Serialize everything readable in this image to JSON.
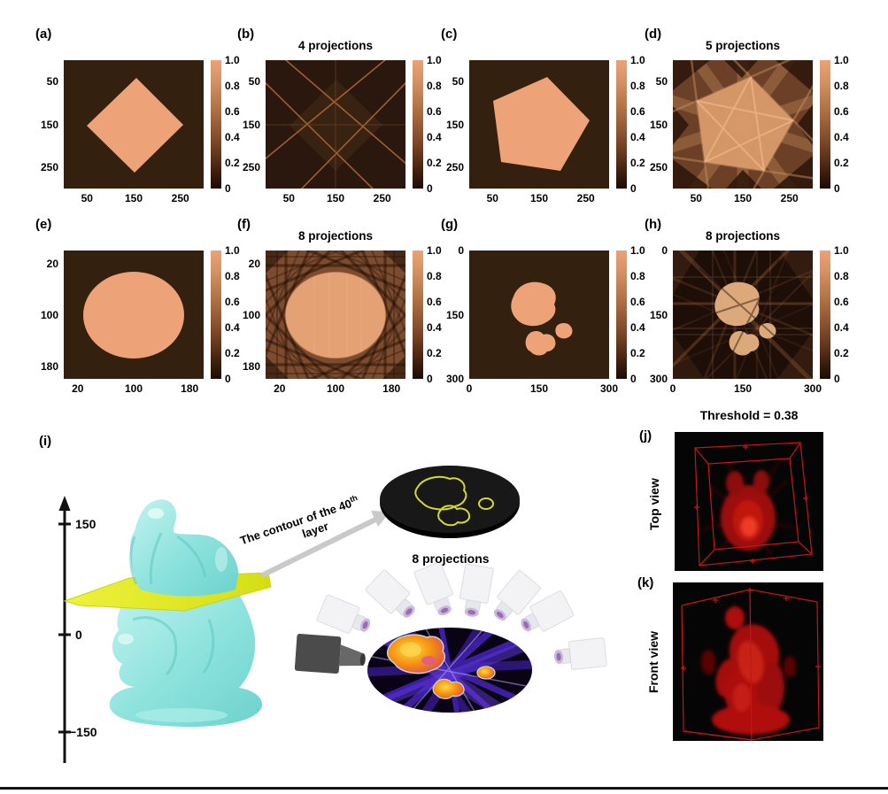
{
  "figure": {
    "panels": [
      {
        "id": "a",
        "label": "(a)",
        "title": "",
        "shape": "diamond",
        "x_ticks": [
          "50",
          "150",
          "250"
        ],
        "y_ticks": [
          "50",
          "150",
          "250"
        ],
        "x_range": [
          0,
          300
        ],
        "y_range": [
          0,
          300
        ],
        "colorbar_ticks": [
          "1.0",
          "0.8",
          "0.6",
          "0.4",
          "0.2",
          "0"
        ]
      },
      {
        "id": "b",
        "label": "(b)",
        "title": "4 projections",
        "shape": "diamond_projections",
        "x_ticks": [
          "50",
          "150",
          "250"
        ],
        "y_ticks": [
          "50",
          "150",
          "250"
        ],
        "x_range": [
          0,
          300
        ],
        "y_range": [
          0,
          300
        ],
        "colorbar_ticks": [
          "1.0",
          "0.8",
          "0.6",
          "0.4",
          "0.2",
          "0"
        ]
      },
      {
        "id": "c",
        "label": "(c)",
        "title": "",
        "shape": "pentagon",
        "x_ticks": [
          "50",
          "150",
          "250"
        ],
        "y_ticks": [
          "50",
          "150",
          "250"
        ],
        "x_range": [
          0,
          300
        ],
        "y_range": [
          0,
          300
        ],
        "colorbar_ticks": [
          "1.0",
          "0.8",
          "0.6",
          "0.4",
          "0.2",
          "0"
        ]
      },
      {
        "id": "d",
        "label": "(d)",
        "title": "5 projections",
        "shape": "pentagon_projections",
        "x_ticks": [
          "50",
          "150",
          "250"
        ],
        "y_ticks": [
          "50",
          "150",
          "250"
        ],
        "x_range": [
          0,
          300
        ],
        "y_range": [
          0,
          300
        ],
        "colorbar_ticks": [
          "1.0",
          "0.8",
          "0.6",
          "0.4",
          "0.2",
          "0"
        ]
      },
      {
        "id": "e",
        "label": "(e)",
        "title": "",
        "shape": "ellipse",
        "x_ticks": [
          "20",
          "100",
          "180"
        ],
        "y_ticks": [
          "20",
          "100",
          "180"
        ],
        "x_range": [
          0,
          200
        ],
        "y_range": [
          0,
          200
        ],
        "colorbar_ticks": [
          "1.0",
          "0.8",
          "0.6",
          "0.4",
          "0.2",
          "0"
        ]
      },
      {
        "id": "f",
        "label": "(f)",
        "title": "8 projections",
        "shape": "ellipse_projections",
        "x_ticks": [
          "20",
          "100",
          "180"
        ],
        "y_ticks": [
          "20",
          "100",
          "180"
        ],
        "x_range": [
          0,
          200
        ],
        "y_range": [
          0,
          200
        ],
        "colorbar_ticks": [
          "1.0",
          "0.8",
          "0.6",
          "0.4",
          "0.2",
          "0"
        ]
      },
      {
        "id": "g",
        "label": "(g)",
        "title": "",
        "shape": "blobs",
        "x_ticks": [
          "0",
          "150",
          "300"
        ],
        "y_ticks": [
          "0",
          "150",
          "300"
        ],
        "x_range": [
          0,
          300
        ],
        "y_range": [
          0,
          300
        ],
        "colorbar_ticks": [
          "1.0",
          "0.8",
          "0.6",
          "0.4",
          "0.2",
          "0"
        ]
      },
      {
        "id": "h",
        "label": "(h)",
        "title": "8 projections",
        "shape": "blobs_projections",
        "x_ticks": [
          "0",
          "150",
          "300"
        ],
        "y_ticks": [
          "0",
          "150",
          "300"
        ],
        "x_range": [
          0,
          300
        ],
        "y_range": [
          0,
          300
        ],
        "colorbar_ticks": [
          "1.0",
          "0.8",
          "0.6",
          "0.4",
          "0.2",
          "0"
        ]
      }
    ],
    "scene": {
      "label": "(i)",
      "axis_ticks": [
        "150",
        "0",
        "−150"
      ],
      "arrow_label_line1": "The contour of the 40",
      "arrow_label_sup": "th",
      "arrow_label_line2": "layer",
      "projections_label": "8 projections"
    },
    "views": {
      "threshold_title": "Threshold = 0.38",
      "top": {
        "label": "(j)",
        "view_label": "Top view"
      },
      "front": {
        "label": "(k)",
        "view_label": "Front view"
      }
    },
    "colors": {
      "shape_fill": "#EDA277",
      "heatmap_background": "#33200F",
      "statue": "#8FE3DE",
      "slice_plane": "#E6EE2E",
      "contour": "#D6DA2E",
      "reconstruction_red": "#C41414"
    }
  },
  "chart_data": [
    {
      "panel": "a",
      "type": "heatmap",
      "title": "",
      "content": "rotated-square phantom, value 1 inside shape, 0 outside",
      "x_range": [
        0,
        300
      ],
      "y_range": [
        0,
        300
      ],
      "x_ticks": [
        50,
        150,
        250
      ],
      "y_ticks": [
        50,
        150,
        250
      ],
      "colorbar_ticks": [
        1.0,
        0.8,
        0.6,
        0.4,
        0.2,
        0
      ]
    },
    {
      "panel": "b",
      "type": "heatmap",
      "title": "4 projections",
      "content": "back-projection of square from 4 angles: faint X-shaped bright lines on dark field",
      "x_range": [
        0,
        300
      ],
      "y_range": [
        0,
        300
      ],
      "x_ticks": [
        50,
        150,
        250
      ],
      "y_ticks": [
        50,
        150,
        250
      ],
      "colorbar_ticks": [
        1.0,
        0.8,
        0.6,
        0.4,
        0.2,
        0
      ]
    },
    {
      "panel": "c",
      "type": "heatmap",
      "title": "",
      "content": "pentagon phantom, value 1 inside, 0 outside",
      "x_range": [
        0,
        300
      ],
      "y_range": [
        0,
        300
      ],
      "x_ticks": [
        50,
        150,
        250
      ],
      "y_ticks": [
        50,
        150,
        250
      ],
      "colorbar_ticks": [
        1.0,
        0.8,
        0.6,
        0.4,
        0.2,
        0
      ]
    },
    {
      "panel": "d",
      "type": "heatmap",
      "title": "5 projections",
      "content": "back-projection of pentagon from 5 angles: bright pentagon with star-shaped band pattern",
      "x_range": [
        0,
        300
      ],
      "y_range": [
        0,
        300
      ],
      "x_ticks": [
        50,
        150,
        250
      ],
      "y_ticks": [
        50,
        150,
        250
      ],
      "colorbar_ticks": [
        1.0,
        0.8,
        0.6,
        0.4,
        0.2,
        0
      ]
    },
    {
      "panel": "e",
      "type": "heatmap",
      "title": "",
      "content": "ellipse phantom, value 1 inside, 0 outside",
      "x_range": [
        0,
        200
      ],
      "y_range": [
        0,
        200
      ],
      "x_ticks": [
        20,
        100,
        180
      ],
      "y_ticks": [
        20,
        100,
        180
      ],
      "colorbar_ticks": [
        1.0,
        0.8,
        0.6,
        0.4,
        0.2,
        0
      ]
    },
    {
      "panel": "f",
      "type": "heatmap",
      "title": "8 projections",
      "content": "back-projection of ellipse from 8 angles: bright ellipse with woven dark lattice border",
      "x_range": [
        0,
        200
      ],
      "y_range": [
        0,
        200
      ],
      "x_ticks": [
        20,
        100,
        180
      ],
      "y_ticks": [
        20,
        100,
        180
      ],
      "colorbar_ticks": [
        1.0,
        0.8,
        0.6,
        0.4,
        0.2,
        0
      ]
    },
    {
      "panel": "g",
      "type": "heatmap",
      "title": "",
      "content": "three-blob phantom (large blob, small circle, peanut), value 1 inside, 0 outside",
      "x_range": [
        0,
        300
      ],
      "y_range": [
        0,
        300
      ],
      "x_ticks": [
        0,
        150,
        300
      ],
      "y_ticks": [
        0,
        150,
        300
      ],
      "colorbar_ticks": [
        1.0,
        0.8,
        0.6,
        0.4,
        0.2,
        0
      ]
    },
    {
      "panel": "h",
      "type": "heatmap",
      "title": "8 projections",
      "content": "back-projection of blobs from 8 angles: bright blobs with radiating streaks",
      "x_range": [
        0,
        300
      ],
      "y_range": [
        0,
        300
      ],
      "x_ticks": [
        0,
        150,
        300
      ],
      "y_ticks": [
        0,
        150,
        300
      ],
      "colorbar_ticks": [
        1.0,
        0.8,
        0.6,
        0.4,
        0.2,
        0
      ]
    },
    {
      "panel": "i",
      "type": "diagram",
      "content": "The Thinker statue sliced by yellow plane at 40th layer; vertical axis ticks 150, 0, -150; contour disk; 8 projectors around back-projection disk"
    },
    {
      "panel": "j",
      "type": "3d-render",
      "title": "Threshold = 0.38",
      "content": "top view of reconstructed red volume in wireframe box"
    },
    {
      "panel": "k",
      "type": "3d-render",
      "content": "front view of reconstructed red volume in wireframe box"
    }
  ]
}
